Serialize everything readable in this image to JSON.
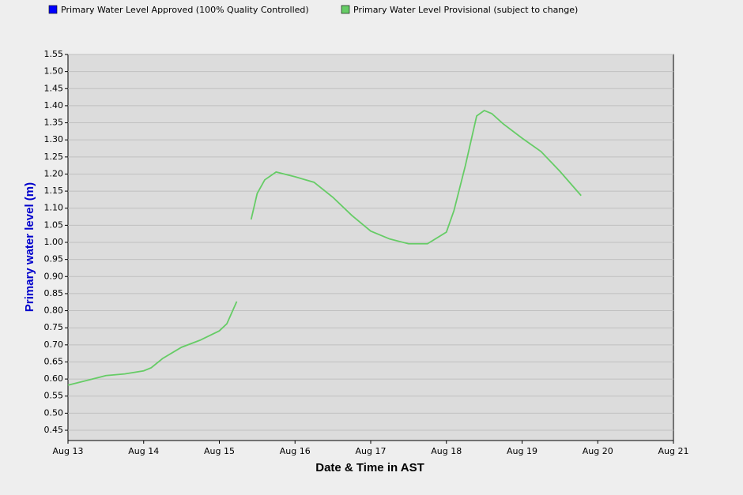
{
  "chart_data": {
    "type": "line",
    "x_label": "Date & Time in AST",
    "y_label": "Primary water level (m)",
    "x": [
      13.0,
      13.25,
      13.5,
      13.75,
      14.0,
      14.1,
      14.25,
      14.5,
      14.75,
      15.0,
      15.1,
      15.23,
      15.3,
      15.42,
      15.5,
      15.6,
      15.75,
      16.0,
      16.25,
      16.5,
      16.75,
      17.0,
      17.25,
      17.5,
      17.75,
      18.0,
      18.1,
      18.25,
      18.4,
      18.5,
      18.6,
      18.75,
      19.0,
      19.25,
      19.5,
      19.78
    ],
    "series": [
      {
        "name": "Primary Water Level Approved (100% Quality Controlled)",
        "color": "#0000ff",
        "values": [
          null,
          null,
          null,
          null,
          null,
          null,
          null,
          null,
          null,
          null,
          null,
          null,
          null,
          null,
          null,
          null,
          null,
          null,
          null,
          null,
          null,
          null,
          null,
          null,
          null,
          null,
          null,
          null,
          null,
          null,
          null,
          null,
          null,
          null,
          null,
          null
        ]
      },
      {
        "name": "Primary Water Level Provisional (subject to change)",
        "color": "#66cc66",
        "values": [
          0.582,
          0.596,
          0.61,
          0.615,
          0.624,
          0.633,
          0.66,
          0.693,
          0.714,
          0.741,
          0.762,
          0.827,
          null,
          1.067,
          1.143,
          1.183,
          1.206,
          1.192,
          1.176,
          1.132,
          1.079,
          1.033,
          1.01,
          0.996,
          0.996,
          1.03,
          1.093,
          1.224,
          1.37,
          1.386,
          1.377,
          1.347,
          1.305,
          1.266,
          1.208,
          1.137
        ]
      }
    ],
    "xlim": [
      13,
      21
    ],
    "xticks": [
      {
        "value": 13,
        "label": "Aug 13"
      },
      {
        "value": 14,
        "label": "Aug 14"
      },
      {
        "value": 15,
        "label": "Aug 15"
      },
      {
        "value": 16,
        "label": "Aug 16"
      },
      {
        "value": 17,
        "label": "Aug 17"
      },
      {
        "value": 18,
        "label": "Aug 18"
      },
      {
        "value": 19,
        "label": "Aug 19"
      },
      {
        "value": 20,
        "label": "Aug 20"
      },
      {
        "value": 21,
        "label": "Aug 21"
      }
    ],
    "ylim": [
      0.42,
      1.55
    ],
    "yticks": [
      0.45,
      {
        "value": 0.5,
        "label": "0.50"
      },
      0.55,
      {
        "value": 0.6,
        "label": "0.60"
      },
      0.65,
      {
        "value": 0.7,
        "label": "0.70"
      },
      0.75,
      {
        "value": 0.8,
        "label": "0.80"
      },
      0.85,
      {
        "value": 0.9,
        "label": "0.90"
      },
      0.95,
      {
        "value": 1.0,
        "label": "1.00"
      },
      1.05,
      {
        "value": 1.1,
        "label": "1.10"
      },
      1.15,
      {
        "value": 1.2,
        "label": "1.20"
      },
      1.25,
      {
        "value": 1.3,
        "label": "1.30"
      },
      1.35,
      {
        "value": 1.4,
        "label": "1.40"
      },
      1.45,
      {
        "value": 1.5,
        "label": "1.50"
      },
      1.55
    ],
    "grid": true
  }
}
